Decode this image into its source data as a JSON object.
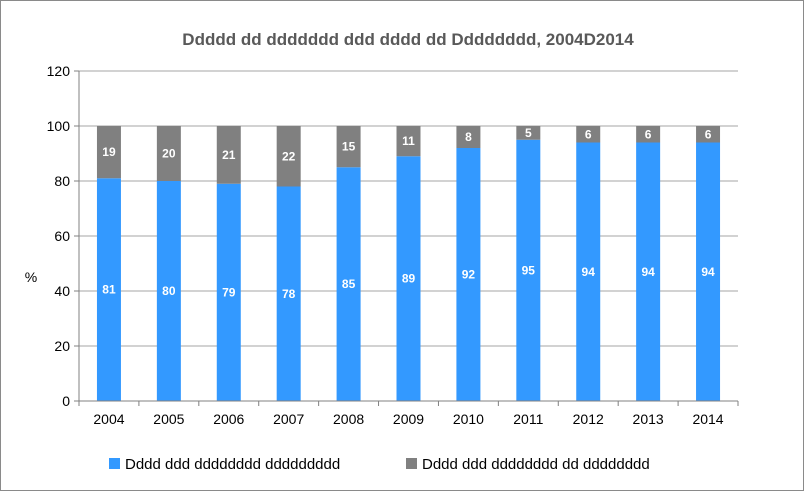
{
  "chart_data": {
    "type": "bar",
    "stacked": true,
    "title": "Ddddd dd ddddddd ddd dddd dd Dddddddd, 2004D2014",
    "xlabel": "",
    "ylabel": "%",
    "ylim": [
      0,
      120
    ],
    "yticks": [
      "0",
      "20",
      "40",
      "60",
      "80",
      "100",
      "120"
    ],
    "grid": true,
    "legend_position": "bottom",
    "categories": [
      "2004",
      "2005",
      "2006",
      "2007",
      "2008",
      "2009",
      "2010",
      "2011",
      "2012",
      "2013",
      "2014"
    ],
    "series": [
      {
        "name": "Dddd ddd dddddddd ddddddddd",
        "color": "#3399ff",
        "values": [
          81,
          80,
          79,
          78,
          85,
          89,
          92,
          95,
          94,
          94,
          94
        ],
        "labels": [
          "81",
          "80",
          "79",
          "78",
          "85",
          "89",
          "92",
          "95",
          "94",
          "94",
          "94"
        ]
      },
      {
        "name": "Dddd ddd dddddddd dd dddddddd",
        "color": "#808080",
        "values": [
          19,
          20,
          21,
          22,
          15,
          11,
          8,
          5,
          6,
          6,
          6
        ],
        "labels": [
          "19",
          "20",
          "21",
          "22",
          "15",
          "11",
          "8",
          "5",
          "6",
          "6",
          "6"
        ]
      }
    ]
  }
}
